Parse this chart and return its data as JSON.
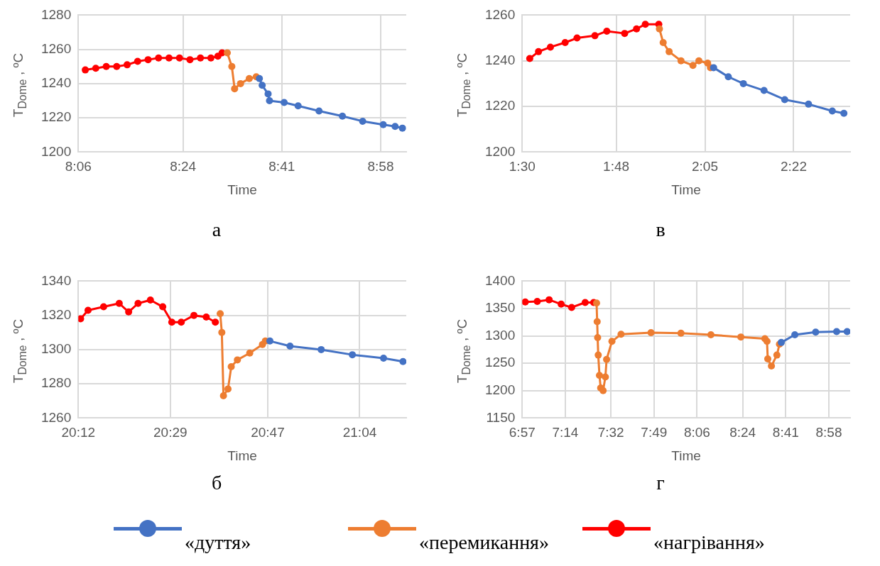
{
  "chart_data": [
    {
      "type": "line",
      "title": "а",
      "xlabel": "Time",
      "ylabel": "T$_{Dome}$ , ºC",
      "xlim": [
        8.1,
        9.04
      ],
      "ylim": [
        1200,
        1280
      ],
      "yticks": [
        1200,
        1220,
        1240,
        1260,
        1280
      ],
      "xticks": [
        {
          "value": 8.1,
          "label": "8:06"
        },
        {
          "value": 8.4,
          "label": "8:24"
        },
        {
          "value": 8.6833,
          "label": "8:41"
        },
        {
          "value": 8.9667,
          "label": "8:58"
        }
      ],
      "grid": true,
      "marker": "circle",
      "legend": "bottom",
      "series": [
        {
          "name": "«дуття»",
          "color": "#4472c4",
          "x": [
            8.619,
            8.627,
            8.644,
            8.648,
            8.69,
            8.73,
            8.79,
            8.857,
            8.915,
            8.974,
            9.008,
            9.029
          ],
          "values": [
            1243,
            1239,
            1234,
            1230,
            1229,
            1227,
            1224,
            1221,
            1218,
            1216,
            1215,
            1214
          ]
        },
        {
          "name": "«перемикання»",
          "color": "#ed7d31",
          "x": [
            8.527,
            8.54,
            8.548,
            8.565,
            8.59,
            8.61
          ],
          "values": [
            1258,
            1250,
            1237,
            1240,
            1243,
            1244
          ]
        },
        {
          "name": "«нагрівання»",
          "color": "#ff0000",
          "x": [
            8.12,
            8.15,
            8.18,
            8.21,
            8.24,
            8.27,
            8.3,
            8.33,
            8.36,
            8.39,
            8.42,
            8.45,
            8.48,
            8.5,
            8.512
          ],
          "values": [
            1248,
            1249,
            1250,
            1250,
            1251,
            1253,
            1254,
            1255,
            1255,
            1255,
            1254,
            1255,
            1255,
            1256,
            1258
          ]
        }
      ]
    },
    {
      "type": "line",
      "title": "в",
      "xlabel": "Time",
      "ylabel": "T$_{Dome}$ , ºC",
      "xlim": [
        1.5,
        2.547
      ],
      "ylim": [
        1200,
        1260
      ],
      "yticks": [
        1200,
        1220,
        1240,
        1260
      ],
      "xticks": [
        {
          "value": 1.5,
          "label": "1:30"
        },
        {
          "value": 1.8,
          "label": "1:48"
        },
        {
          "value": 2.0833,
          "label": "2:05"
        },
        {
          "value": 2.3667,
          "label": "2:22"
        }
      ],
      "grid": true,
      "marker": "circle",
      "series": [
        {
          "color": "#4472c4",
          "x": [
            2.111,
            2.158,
            2.206,
            2.272,
            2.338,
            2.414,
            2.49,
            2.527
          ],
          "values": [
            1237,
            1233,
            1230,
            1227,
            1223,
            1221,
            1218,
            1217
          ]
        },
        {
          "color": "#ed7d31",
          "x": [
            1.938,
            1.95,
            1.969,
            2.007,
            2.045,
            2.064,
            2.092,
            2.101
          ],
          "values": [
            1254,
            1248,
            1244,
            1240,
            1238,
            1240,
            1239,
            1237
          ]
        },
        {
          "color": "#ff0000",
          "x": [
            1.524,
            1.552,
            1.59,
            1.637,
            1.675,
            1.732,
            1.77,
            1.827,
            1.865,
            1.893,
            1.936
          ],
          "values": [
            1241,
            1244,
            1246,
            1248,
            1250,
            1251,
            1253,
            1252,
            1254,
            1256,
            1256
          ]
        }
      ]
    },
    {
      "type": "line",
      "title": "б",
      "xlabel": "Time",
      "ylabel": "T$_{Dome}$ , ºC",
      "xlim": [
        20.2,
        21.21
      ],
      "ylim": [
        1260,
        1340
      ],
      "yticks": [
        1260,
        1280,
        1300,
        1320,
        1340
      ],
      "xticks": [
        {
          "value": 20.2,
          "label": "20:12"
        },
        {
          "value": 20.4833,
          "label": "20:29"
        },
        {
          "value": 20.7833,
          "label": "20:47"
        },
        {
          "value": 21.0667,
          "label": "21:04"
        }
      ],
      "grid": true,
      "marker": "circle",
      "series": [
        {
          "color": "#4472c4",
          "x": [
            20.79,
            20.852,
            20.948,
            21.044,
            21.14,
            21.2
          ],
          "values": [
            1305,
            1302,
            1300,
            1297,
            1295,
            1293
          ]
        },
        {
          "color": "#ed7d31",
          "x": [
            20.637,
            20.642,
            20.647,
            20.661,
            20.671,
            20.69,
            20.728,
            20.767,
            20.776
          ],
          "values": [
            1321,
            1310,
            1273,
            1277,
            1290,
            1294,
            1298,
            1303,
            1305
          ]
        },
        {
          "color": "#ff0000",
          "x": [
            20.207,
            20.23,
            20.278,
            20.326,
            20.355,
            20.384,
            20.422,
            20.46,
            20.488,
            20.517,
            20.556,
            20.594,
            20.622
          ],
          "values": [
            1318,
            1323,
            1325,
            1327,
            1322,
            1327,
            1329,
            1325,
            1316,
            1316,
            1320,
            1319,
            1316
          ]
        }
      ]
    },
    {
      "type": "line",
      "title": "г",
      "xlabel": "Time",
      "ylabel": "T$_{Dome}$ , ºC",
      "xlim": [
        6.95,
        9.107
      ],
      "ylim": [
        1150,
        1400
      ],
      "yticks": [
        1150,
        1200,
        1250,
        1300,
        1350,
        1400
      ],
      "xticks": [
        {
          "value": 6.95,
          "label": "6:57"
        },
        {
          "value": 7.2333,
          "label": "7:14"
        },
        {
          "value": 7.5333,
          "label": "7:32"
        },
        {
          "value": 7.8167,
          "label": "7:49"
        },
        {
          "value": 8.1,
          "label": "8:06"
        },
        {
          "value": 8.4,
          "label": "8:24"
        },
        {
          "value": 8.6833,
          "label": "8:41"
        },
        {
          "value": 8.9667,
          "label": "8:58"
        }
      ],
      "grid": true,
      "marker": "circle",
      "series": [
        {
          "color": "#4472c4",
          "x": [
            8.654,
            8.743,
            8.88,
            9.018,
            9.087
          ],
          "values": [
            1288,
            1302,
            1307,
            1308,
            1308
          ]
        },
        {
          "color": "#ed7d31",
          "x": [
            7.439,
            7.443,
            7.446,
            7.45,
            7.458,
            7.466,
            7.482,
            7.497,
            7.505,
            7.54,
            7.6,
            7.797,
            7.994,
            8.191,
            8.388,
            8.546,
            8.56,
            8.565,
            8.589,
            8.625,
            8.642
          ],
          "values": [
            1360,
            1326,
            1297,
            1265,
            1228,
            1205,
            1200,
            1225,
            1257,
            1290,
            1303,
            1306,
            1305,
            1302,
            1298,
            1295,
            1290,
            1258,
            1245,
            1265,
            1285
          ]
        },
        {
          "color": "#ff0000",
          "x": [
            6.97,
            7.049,
            7.127,
            7.206,
            7.275,
            7.364,
            7.42
          ],
          "values": [
            1362,
            1363,
            1366,
            1358,
            1352,
            1361,
            1361
          ]
        }
      ]
    }
  ]
}
